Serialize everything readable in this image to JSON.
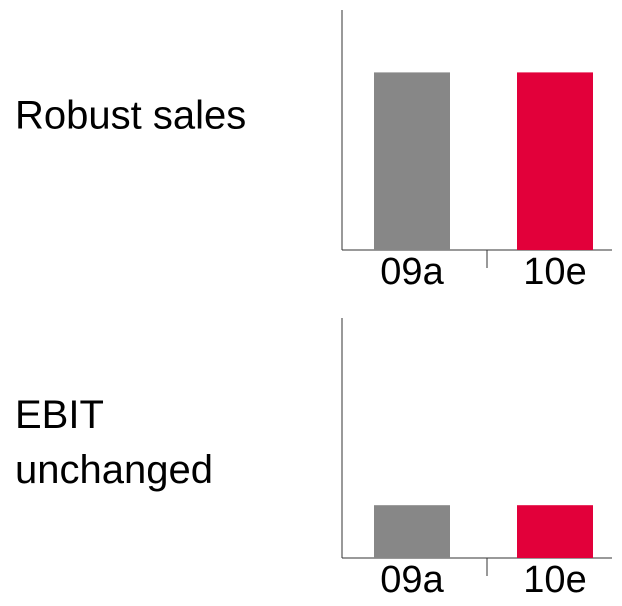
{
  "chart_data": [
    {
      "type": "bar",
      "title": [
        "Robust sales"
      ],
      "categories": [
        "09a",
        "10e"
      ],
      "values": [
        74,
        74
      ],
      "colors": [
        "#878787",
        "#e2003a"
      ],
      "ylim": [
        0,
        100
      ]
    },
    {
      "type": "bar",
      "title": [
        "EBIT",
        "unchanged"
      ],
      "categories": [
        "09a",
        "10e"
      ],
      "values": [
        22,
        22
      ],
      "colors": [
        "#878787",
        "#e2003a"
      ],
      "ylim": [
        0,
        100
      ]
    }
  ]
}
